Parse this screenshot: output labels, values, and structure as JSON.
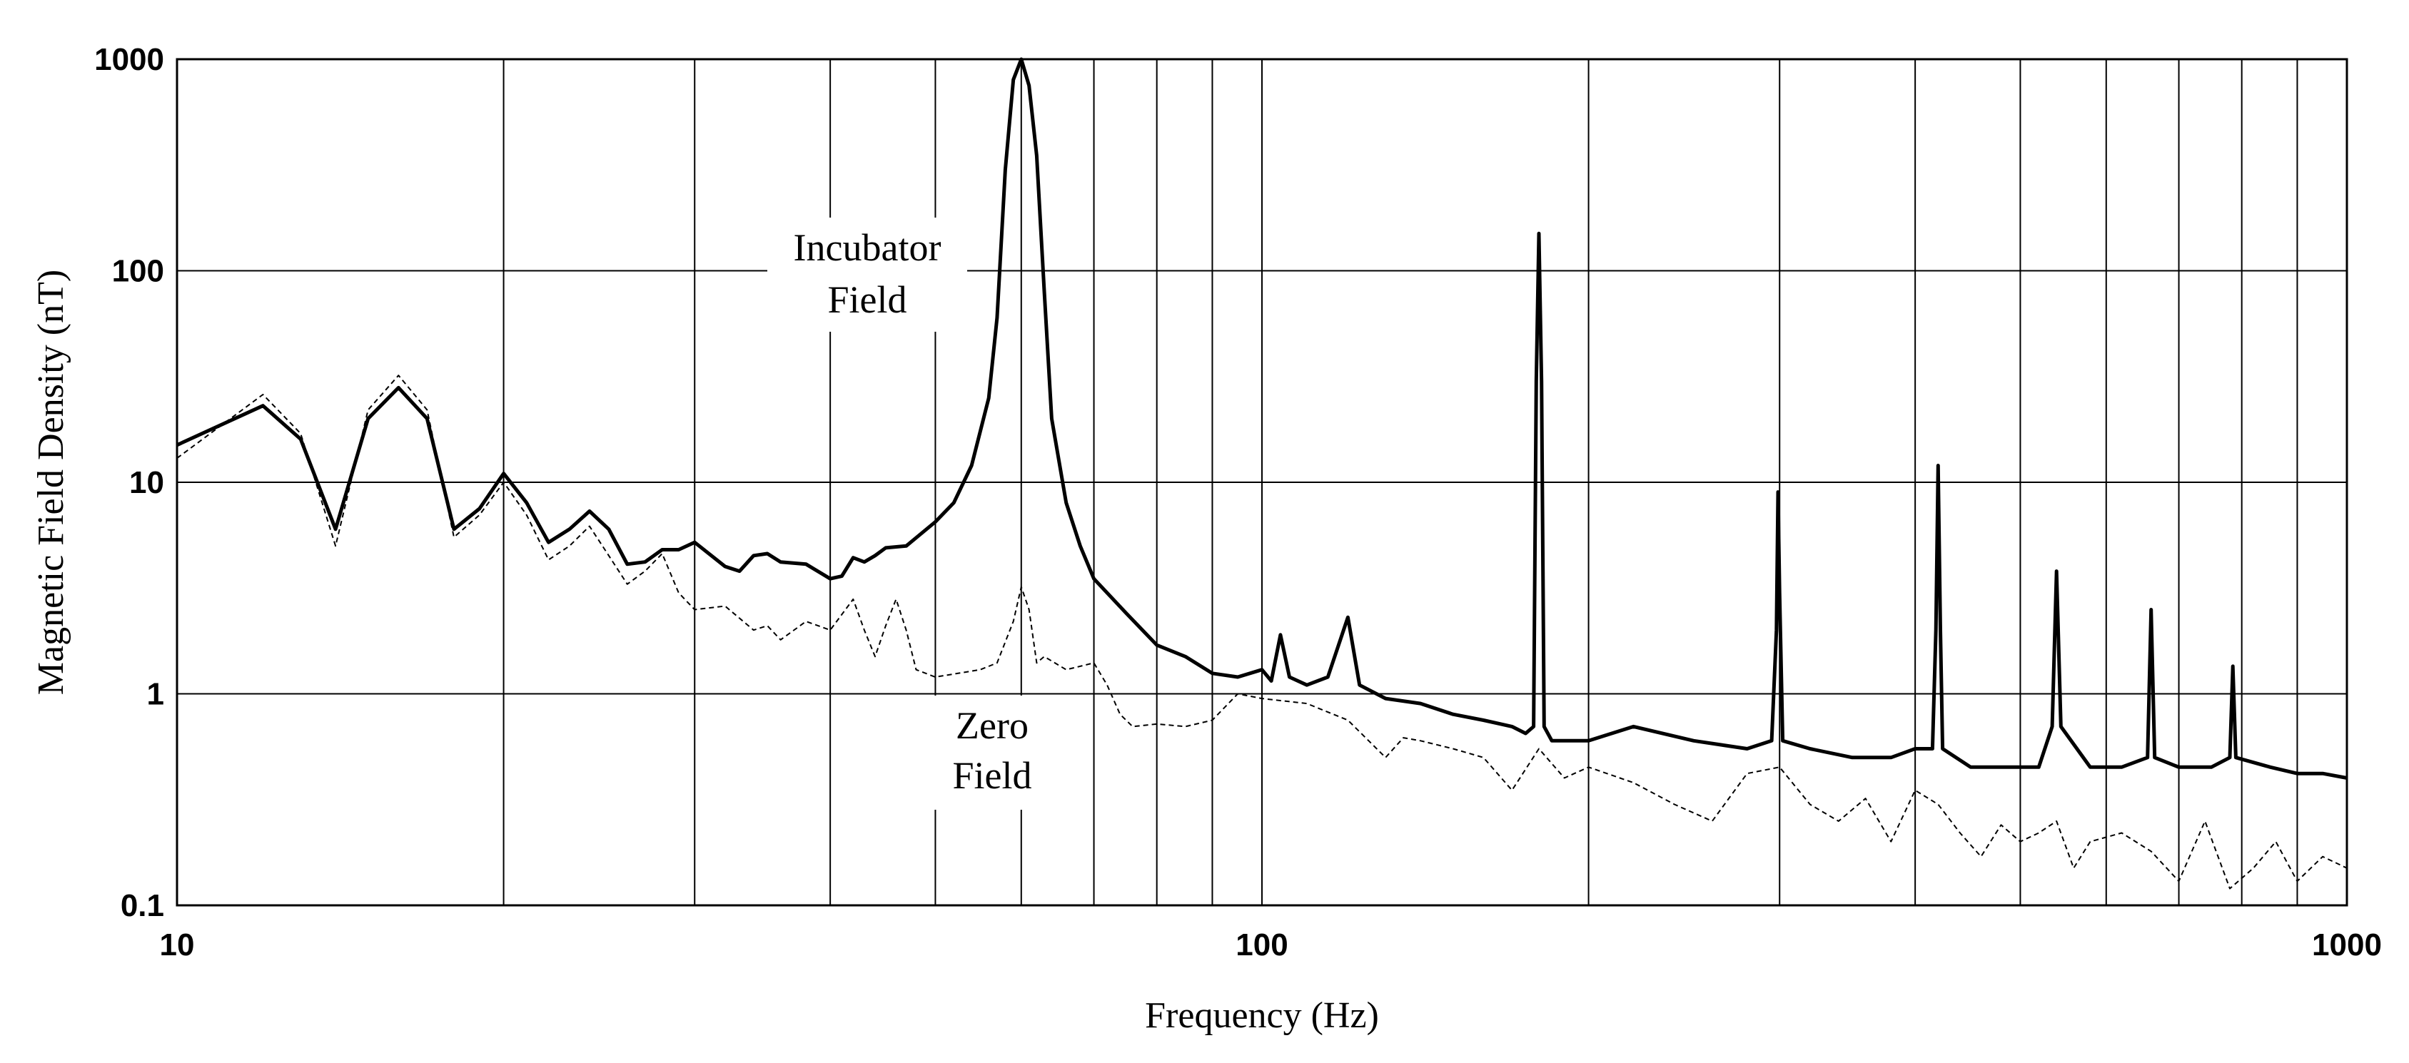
{
  "chart_data": {
    "type": "line",
    "title": "",
    "xlabel": "Frequency (Hz)",
    "ylabel": "Magnetic Field Density (nT)",
    "xscale": "log",
    "yscale": "log",
    "xlim": [
      10,
      1000
    ],
    "ylim": [
      0.1,
      1000
    ],
    "grid": true,
    "x_ticks": [
      {
        "value": 10,
        "label": "10"
      },
      {
        "value": 100,
        "label": "100"
      },
      {
        "value": 1000,
        "label": "1000"
      }
    ],
    "y_ticks": [
      {
        "value": 0.1,
        "label": "0.1"
      },
      {
        "value": 1,
        "label": "1"
      },
      {
        "value": 10,
        "label": "10"
      },
      {
        "value": 100,
        "label": "100"
      },
      {
        "value": 1000,
        "label": "1000"
      }
    ],
    "annotations": {
      "incubator": [
        "Incubator",
        "Field"
      ],
      "zero": [
        "Zero",
        "Field"
      ]
    },
    "series": [
      {
        "name": "Incubator Field",
        "style": "solid",
        "points": [
          [
            10,
            15
          ],
          [
            12,
            23
          ],
          [
            13,
            16
          ],
          [
            14,
            6
          ],
          [
            15,
            20
          ],
          [
            16,
            28
          ],
          [
            17,
            20
          ],
          [
            18,
            6
          ],
          [
            19,
            7.5
          ],
          [
            20,
            11
          ],
          [
            21,
            8
          ],
          [
            22,
            5.2
          ],
          [
            23,
            6
          ],
          [
            24,
            7.3
          ],
          [
            25,
            6
          ],
          [
            26,
            4.1
          ],
          [
            27,
            4.2
          ],
          [
            28,
            4.8
          ],
          [
            29,
            4.8
          ],
          [
            30,
            5.2
          ],
          [
            32,
            4
          ],
          [
            33,
            3.8
          ],
          [
            34,
            4.5
          ],
          [
            35,
            4.6
          ],
          [
            36,
            4.2
          ],
          [
            38,
            4.1
          ],
          [
            40,
            3.5
          ],
          [
            41,
            3.6
          ],
          [
            42,
            4.4
          ],
          [
            43,
            4.2
          ],
          [
            44,
            4.5
          ],
          [
            45,
            4.9
          ],
          [
            47,
            5
          ],
          [
            50,
            6.5
          ],
          [
            52,
            8
          ],
          [
            54,
            12
          ],
          [
            56,
            25
          ],
          [
            57,
            60
          ],
          [
            58,
            300
          ],
          [
            59,
            800
          ],
          [
            60,
            1000
          ],
          [
            61,
            750
          ],
          [
            62,
            350
          ],
          [
            63,
            80
          ],
          [
            64,
            20
          ],
          [
            66,
            8
          ],
          [
            68,
            5
          ],
          [
            70,
            3.5
          ],
          [
            75,
            2.4
          ],
          [
            80,
            1.7
          ],
          [
            85,
            1.5
          ],
          [
            90,
            1.25
          ],
          [
            95,
            1.2
          ],
          [
            100,
            1.3
          ],
          [
            102,
            1.15
          ],
          [
            104,
            1.9
          ],
          [
            106,
            1.2
          ],
          [
            110,
            1.1
          ],
          [
            115,
            1.2
          ],
          [
            120,
            2.3
          ],
          [
            123,
            1.1
          ],
          [
            130,
            0.95
          ],
          [
            140,
            0.9
          ],
          [
            150,
            0.8
          ],
          [
            160,
            0.75
          ],
          [
            170,
            0.7
          ],
          [
            175,
            0.65
          ],
          [
            178,
            0.7
          ],
          [
            179,
            30
          ],
          [
            180,
            150
          ],
          [
            181,
            30
          ],
          [
            182,
            0.7
          ],
          [
            185,
            0.6
          ],
          [
            200,
            0.6
          ],
          [
            220,
            0.7
          ],
          [
            250,
            0.6
          ],
          [
            280,
            0.55
          ],
          [
            295,
            0.6
          ],
          [
            298,
            2
          ],
          [
            299,
            9
          ],
          [
            300,
            3
          ],
          [
            302,
            0.6
          ],
          [
            320,
            0.55
          ],
          [
            350,
            0.5
          ],
          [
            380,
            0.5
          ],
          [
            400,
            0.55
          ],
          [
            415,
            0.55
          ],
          [
            418,
            2
          ],
          [
            420,
            12
          ],
          [
            422,
            2
          ],
          [
            424,
            0.55
          ],
          [
            450,
            0.45
          ],
          [
            480,
            0.45
          ],
          [
            520,
            0.45
          ],
          [
            535,
            0.7
          ],
          [
            540,
            3.8
          ],
          [
            545,
            0.7
          ],
          [
            580,
            0.45
          ],
          [
            620,
            0.45
          ],
          [
            655,
            0.5
          ],
          [
            660,
            2.5
          ],
          [
            665,
            0.5
          ],
          [
            700,
            0.45
          ],
          [
            750,
            0.45
          ],
          [
            780,
            0.5
          ],
          [
            785,
            1.35
          ],
          [
            790,
            0.5
          ],
          [
            850,
            0.45
          ],
          [
            900,
            0.42
          ],
          [
            950,
            0.42
          ],
          [
            1000,
            0.4
          ]
        ]
      },
      {
        "name": "Zero Field",
        "style": "dashed",
        "points": [
          [
            10,
            13
          ],
          [
            12,
            26
          ],
          [
            13,
            17
          ],
          [
            14,
            5
          ],
          [
            15,
            22
          ],
          [
            16,
            32
          ],
          [
            17,
            22
          ],
          [
            18,
            5.5
          ],
          [
            19,
            7
          ],
          [
            20,
            10
          ],
          [
            21,
            7
          ],
          [
            22,
            4.3
          ],
          [
            23,
            5
          ],
          [
            24,
            6.2
          ],
          [
            25,
            4.5
          ],
          [
            26,
            3.3
          ],
          [
            27,
            3.8
          ],
          [
            28,
            4.6
          ],
          [
            29,
            3
          ],
          [
            30,
            2.5
          ],
          [
            32,
            2.6
          ],
          [
            34,
            2
          ],
          [
            35,
            2.1
          ],
          [
            36,
            1.8
          ],
          [
            38,
            2.2
          ],
          [
            40,
            2
          ],
          [
            42,
            2.8
          ],
          [
            43,
            2
          ],
          [
            44,
            1.5
          ],
          [
            45,
            2.1
          ],
          [
            46,
            2.8
          ],
          [
            47,
            2
          ],
          [
            48,
            1.3
          ],
          [
            50,
            1.2
          ],
          [
            55,
            1.3
          ],
          [
            57,
            1.4
          ],
          [
            59,
            2.2
          ],
          [
            60,
            3.2
          ],
          [
            61,
            2.5
          ],
          [
            62,
            1.4
          ],
          [
            63,
            1.5
          ],
          [
            66,
            1.3
          ],
          [
            70,
            1.4
          ],
          [
            72,
            1.1
          ],
          [
            74,
            0.8
          ],
          [
            76,
            0.7
          ],
          [
            80,
            0.72
          ],
          [
            85,
            0.7
          ],
          [
            90,
            0.75
          ],
          [
            95,
            1
          ],
          [
            100,
            0.95
          ],
          [
            110,
            0.9
          ],
          [
            120,
            0.75
          ],
          [
            130,
            0.5
          ],
          [
            135,
            0.62
          ],
          [
            140,
            0.6
          ],
          [
            150,
            0.55
          ],
          [
            160,
            0.5
          ],
          [
            170,
            0.35
          ],
          [
            180,
            0.55
          ],
          [
            190,
            0.4
          ],
          [
            200,
            0.45
          ],
          [
            220,
            0.38
          ],
          [
            240,
            0.3
          ],
          [
            260,
            0.25
          ],
          [
            280,
            0.42
          ],
          [
            300,
            0.45
          ],
          [
            320,
            0.3
          ],
          [
            340,
            0.25
          ],
          [
            360,
            0.32
          ],
          [
            380,
            0.2
          ],
          [
            400,
            0.35
          ],
          [
            420,
            0.3
          ],
          [
            440,
            0.22
          ],
          [
            460,
            0.17
          ],
          [
            480,
            0.24
          ],
          [
            500,
            0.2
          ],
          [
            520,
            0.22
          ],
          [
            540,
            0.25
          ],
          [
            560,
            0.15
          ],
          [
            580,
            0.2
          ],
          [
            620,
            0.22
          ],
          [
            660,
            0.18
          ],
          [
            700,
            0.13
          ],
          [
            740,
            0.25
          ],
          [
            780,
            0.12
          ],
          [
            820,
            0.15
          ],
          [
            860,
            0.2
          ],
          [
            900,
            0.13
          ],
          [
            950,
            0.17
          ],
          [
            1000,
            0.15
          ]
        ]
      }
    ]
  }
}
